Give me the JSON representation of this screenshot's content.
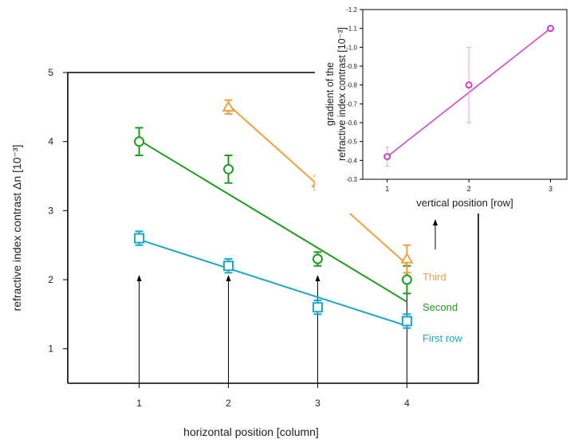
{
  "chart_data": [
    {
      "type": "scatter",
      "xlabel": "horizontal position [column]",
      "ylabel": "refractive index contrast Δn [10⁻³]",
      "xlim": [
        0.2,
        4.8
      ],
      "ylim": [
        0.5,
        5
      ],
      "xticks": [
        "1",
        "2",
        "3",
        "4"
      ],
      "yticks": [
        "1",
        "2",
        "3",
        "4",
        "5"
      ],
      "series": [
        {
          "name": "First row",
          "color": "#1ba8c8",
          "marker": "square",
          "x": [
            1,
            2,
            3,
            4
          ],
          "y": [
            2.6,
            2.2,
            1.6,
            1.4
          ],
          "err": [
            0.1,
            0.1,
            0.1,
            0.1
          ],
          "fit": [
            [
              1,
              2.58
            ],
            [
              4,
              1.33
            ]
          ]
        },
        {
          "name": "Second",
          "color": "#1c9d1c",
          "marker": "circle",
          "x": [
            1,
            2,
            3,
            4
          ],
          "y": [
            4.0,
            3.6,
            2.3,
            2.0
          ],
          "err": [
            0.2,
            0.2,
            0.1,
            0.2
          ],
          "fit": [
            [
              1,
              4.02
            ],
            [
              4,
              1.68
            ]
          ]
        },
        {
          "name": "Third",
          "color": "#f5a040",
          "marker": "triangle",
          "x": [
            2,
            3,
            4
          ],
          "y": [
            4.5,
            3.4,
            2.3
          ],
          "err": [
            0.1,
            0.1,
            0.2
          ],
          "fit": [
            [
              2,
              4.53
            ],
            [
              4,
              2.22
            ]
          ]
        }
      ],
      "arrows_at_x": [
        1,
        2,
        3,
        4
      ]
    },
    {
      "type": "line",
      "xlabel": "vertical position [row]",
      "ylabel_lines": [
        "gradient of the",
        "refractive index contrast [10⁻³]"
      ],
      "xlim": [
        0.7,
        3.2
      ],
      "ylim": [
        -0.3,
        -1.2
      ],
      "xticks": [
        "1",
        "2",
        "3"
      ],
      "yticks": [
        "-0.3",
        "-0.4",
        "-0.5",
        "-0.6",
        "-0.7",
        "-0.8",
        "-0.9",
        "-1.0",
        "-1.1",
        "-1.2"
      ],
      "series": [
        {
          "name": "gradient",
          "color": "#d23cc8",
          "marker": "circle",
          "x": [
            1,
            2,
            3
          ],
          "y": [
            -0.42,
            -0.8,
            -1.1
          ],
          "err": [
            0.05,
            0.2,
            0.0
          ],
          "fit": [
            [
              1,
              -0.42
            ],
            [
              3,
              -1.1
            ]
          ]
        }
      ]
    }
  ]
}
